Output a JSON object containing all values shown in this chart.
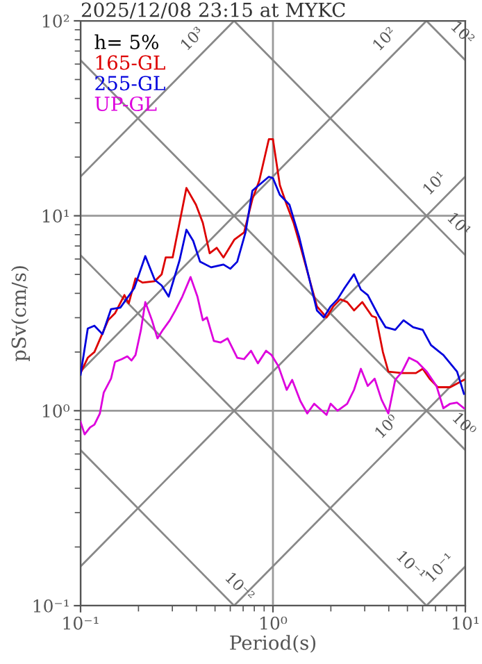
{
  "chart_data": {
    "type": "line",
    "title": "2025/12/08 23:15 at MYKC",
    "xlabel": "Period(s)",
    "ylabel": "pSv(cm/s)",
    "legend_title": "h= 5%",
    "legend": "top left",
    "log": "xy",
    "grid": true,
    "xlim": [
      0.1,
      10
    ],
    "ylim": [
      0.1,
      100
    ],
    "xticks": [
      {
        "value": 0.1,
        "label": "10⁻¹"
      },
      {
        "value": 1,
        "label": "10⁰"
      },
      {
        "value": 10,
        "label": "10¹"
      }
    ],
    "yticks": [
      {
        "value": 0.1,
        "label": "10⁻¹"
      },
      {
        "value": 1,
        "label": "10⁰"
      },
      {
        "value": 10,
        "label": "10¹"
      },
      {
        "value": 100,
        "label": "10²"
      }
    ],
    "series": [
      {
        "color": "#888888",
        "x": [
          0.1,
          0.628
        ],
        "values": [
          15.9,
          100
        ]
      },
      {
        "color": "#888888",
        "x": [
          0.1,
          6.28
        ],
        "values": [
          1.59,
          100
        ]
      },
      {
        "color": "#888888",
        "x": [
          0.1,
          10
        ],
        "values": [
          0.159,
          15.9
        ]
      },
      {
        "color": "#888888",
        "x": [
          0.628,
          10
        ],
        "values": [
          0.1,
          1.59
        ]
      },
      {
        "color": "#888888",
        "x": [
          6.28,
          10
        ],
        "values": [
          0.1,
          0.159
        ]
      },
      {
        "color": "#888888",
        "x": [
          6.28,
          10
        ],
        "values": [
          100,
          62.8
        ]
      },
      {
        "color": "#888888",
        "x": [
          0.628,
          10
        ],
        "values": [
          100,
          6.28
        ]
      },
      {
        "color": "#888888",
        "x": [
          0.1,
          10
        ],
        "values": [
          62.8,
          0.628
        ]
      },
      {
        "color": "#888888",
        "x": [
          0.1,
          6.28
        ],
        "values": [
          6.28,
          0.1
        ]
      },
      {
        "color": "#888888",
        "x": [
          0.1,
          0.628
        ],
        "values": [
          0.628,
          0.1
        ]
      },
      {
        "name": "165-GL",
        "color": "#dd0000",
        "x": [
          0.1,
          0.109,
          0.118,
          0.139,
          0.151,
          0.169,
          0.178,
          0.193,
          0.21,
          0.243,
          0.264,
          0.277,
          0.301,
          0.355,
          0.398,
          0.432,
          0.469,
          0.51,
          0.553,
          0.631,
          0.708,
          0.782,
          0.848,
          0.952,
          1.0,
          1.086,
          1.179,
          1.28,
          1.389,
          1.693,
          1.899,
          2.062,
          2.239,
          2.431,
          2.639,
          2.912,
          3.268,
          3.434,
          3.728,
          3.981,
          4.693,
          5.534,
          6.005,
          6.521,
          7.197,
          8.346,
          9.837
        ],
        "values": [
          1.56,
          1.87,
          2.0,
          2.91,
          3.16,
          3.92,
          3.55,
          4.77,
          4.54,
          4.62,
          5.01,
          6.11,
          6.11,
          13.89,
          11.4,
          9.21,
          6.42,
          6.85,
          6.11,
          7.56,
          8.21,
          12.18,
          15.08,
          24.7,
          24.7,
          14.36,
          11.4,
          9.21,
          6.97,
          3.43,
          3.01,
          3.43,
          3.73,
          3.61,
          3.27,
          3.61,
          3.06,
          3.01,
          2.0,
          1.585,
          1.56,
          1.56,
          1.64,
          1.46,
          1.32,
          1.32,
          1.44
        ]
      },
      {
        "name": "255-GL",
        "color": "#0000dd",
        "x": [
          0.1,
          0.109,
          0.118,
          0.13,
          0.144,
          0.161,
          0.19,
          0.217,
          0.243,
          0.264,
          0.287,
          0.327,
          0.355,
          0.385,
          0.418,
          0.477,
          0.553,
          0.6,
          0.652,
          0.72,
          0.782,
          0.952,
          1.0,
          1.086,
          1.218,
          1.367,
          1.693,
          1.838,
          1.995,
          2.166,
          2.352,
          2.639,
          2.865,
          3.111,
          3.548,
          3.852,
          4.322,
          4.772,
          5.354,
          6.005,
          6.629,
          7.687,
          9.061,
          9.837
        ],
        "values": [
          1.53,
          2.64,
          2.73,
          2.47,
          3.32,
          3.38,
          4.25,
          6.21,
          4.69,
          4.39,
          3.85,
          5.91,
          8.48,
          7.44,
          5.81,
          5.44,
          5.62,
          5.35,
          5.81,
          8.21,
          13.45,
          15.85,
          15.6,
          12.8,
          11.4,
          7.82,
          3.27,
          3.01,
          3.43,
          3.73,
          4.25,
          5.01,
          4.18,
          3.92,
          3.06,
          2.68,
          2.6,
          2.91,
          2.68,
          2.6,
          2.17,
          1.93,
          1.585,
          1.22
        ]
      },
      {
        "name": "UP-GL",
        "color": "#dd00dd",
        "x": [
          0.1,
          0.105,
          0.112,
          0.118,
          0.126,
          0.132,
          0.144,
          0.151,
          0.164,
          0.175,
          0.184,
          0.193,
          0.206,
          0.217,
          0.235,
          0.251,
          0.268,
          0.291,
          0.311,
          0.338,
          0.373,
          0.405,
          0.432,
          0.454,
          0.493,
          0.535,
          0.581,
          0.652,
          0.708,
          0.769,
          0.835,
          0.921,
          0.984,
          1.068,
          1.179,
          1.259,
          1.389,
          1.508,
          1.638,
          1.899,
          1.995,
          2.166,
          2.431,
          2.639,
          2.865,
          3.111,
          3.378,
          3.667,
          3.981,
          4.322,
          4.693,
          5.096,
          5.623,
          6.31,
          7.079,
          7.687,
          8.346,
          9.061,
          9.837
        ],
        "values": [
          0.877,
          0.756,
          0.821,
          0.848,
          0.968,
          1.24,
          1.46,
          1.78,
          1.84,
          1.9,
          1.81,
          1.93,
          2.6,
          3.61,
          2.91,
          2.35,
          2.6,
          2.91,
          3.27,
          3.85,
          4.85,
          3.85,
          2.91,
          3.01,
          2.28,
          2.24,
          2.35,
          1.87,
          1.84,
          2.03,
          1.75,
          2.03,
          1.93,
          1.69,
          1.28,
          1.44,
          1.12,
          0.968,
          1.086,
          0.952,
          1.086,
          1.0,
          1.086,
          1.28,
          1.64,
          1.34,
          1.46,
          1.14,
          0.968,
          1.44,
          1.585,
          1.87,
          1.78,
          1.585,
          1.34,
          1.03,
          1.086,
          1.1,
          1.03
        ]
      }
    ],
    "annotations": [
      {
        "text": "10³",
        "x": 0.44,
        "y": 70.0
      },
      {
        "text": "10²",
        "x": 4.39,
        "y": 69.8
      },
      {
        "text": "10²",
        "x": 8.35,
        "y": 75.2
      },
      {
        "text": "10¹",
        "x": 8.0,
        "y": 12.72
      },
      {
        "text": "10¹",
        "x": 8.0,
        "y": 7.85
      },
      {
        "text": "10⁰",
        "x": 4.5,
        "y": 0.7166
      },
      {
        "text": "10⁰",
        "x": 8.5,
        "y": 0.739
      },
      {
        "text": "10⁻¹",
        "x": 8.5,
        "y": 0.1354
      },
      {
        "text": "10⁻¹",
        "x": 4.5,
        "y": 0.1396
      },
      {
        "text": "10⁻²",
        "x": 0.58,
        "y": 0.1083
      }
    ]
  }
}
